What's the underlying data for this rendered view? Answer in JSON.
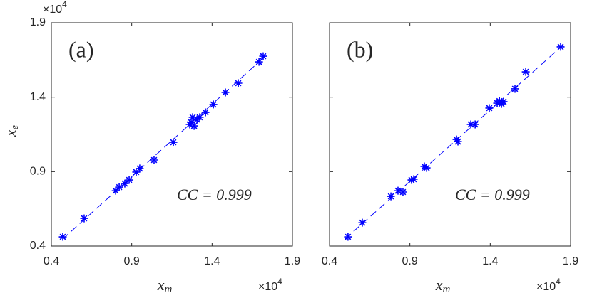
{
  "chart_data": [
    {
      "type": "scatter",
      "panel_label": "(a)",
      "annotation": "CC = 0.999",
      "xlabel": "x",
      "xlabel_sub": "m",
      "ylabel": "x",
      "ylabel_sub": "e",
      "exponent_base": "×10",
      "x_exponent": "4",
      "y_exponent": "4",
      "xlim": [
        0.4,
        1.9
      ],
      "ylim": [
        0.4,
        1.9
      ],
      "xticks": [
        0.4,
        0.9,
        1.4,
        1.9
      ],
      "yticks": [
        0.4,
        0.9,
        1.4,
        1.9
      ],
      "ytick_labels": true,
      "color": "#0000ff",
      "x": [
        0.471,
        0.604,
        0.8,
        0.822,
        0.857,
        0.884,
        0.928,
        0.95,
        1.039,
        1.159,
        1.261,
        1.27,
        1.279,
        1.288,
        1.306,
        1.323,
        1.359,
        1.408,
        1.483,
        1.563,
        1.692,
        1.718
      ],
      "values": [
        0.462,
        0.586,
        0.772,
        0.796,
        0.82,
        0.844,
        0.897,
        0.921,
        0.978,
        1.097,
        1.217,
        1.231,
        1.265,
        1.207,
        1.25,
        1.265,
        1.298,
        1.351,
        1.432,
        1.494,
        1.637,
        1.675
      ],
      "fit": {
        "x": [
          0.471,
          1.727
        ],
        "y": [
          0.448,
          1.671
        ]
      }
    },
    {
      "type": "scatter",
      "panel_label": "(b)",
      "annotation": "CC = 0.999",
      "xlabel": "x",
      "xlabel_sub": "m",
      "exponent_base": "×10",
      "x_exponent": "4",
      "xlim": [
        0.4,
        1.9
      ],
      "ylim": [
        0.4,
        1.9
      ],
      "xticks": [
        0.4,
        0.9,
        1.4,
        1.9
      ],
      "yticks": [
        0.4,
        0.9,
        1.4,
        1.9
      ],
      "ytick_labels": false,
      "color": "#0000ff",
      "x": [
        0.515,
        0.604,
        0.782,
        0.826,
        0.857,
        0.91,
        0.924,
        0.99,
        1.004,
        1.19,
        1.199,
        1.279,
        1.306,
        1.394,
        1.443,
        1.457,
        1.47,
        1.483,
        1.554,
        1.621,
        1.838
      ],
      "values": [
        0.462,
        0.557,
        0.734,
        0.772,
        0.763,
        0.844,
        0.849,
        0.935,
        0.925,
        1.116,
        1.102,
        1.217,
        1.217,
        1.327,
        1.36,
        1.374,
        1.355,
        1.37,
        1.456,
        1.57,
        1.738
      ],
      "fit": {
        "x": [
          0.497,
          1.856
        ],
        "y": [
          0.448,
          1.752
        ]
      }
    }
  ]
}
